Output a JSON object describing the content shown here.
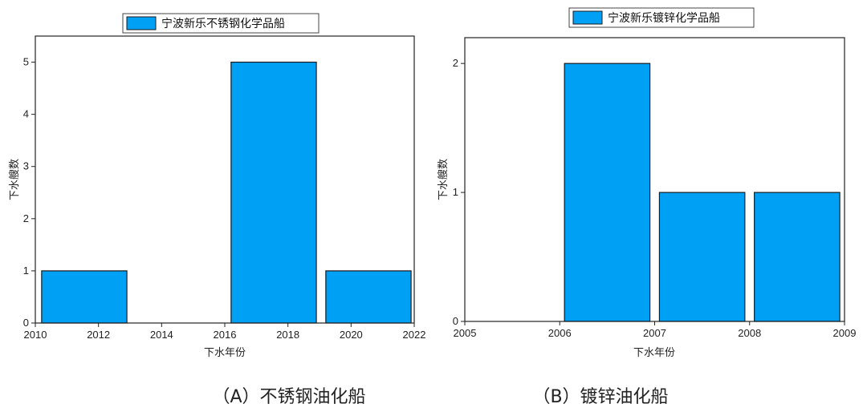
{
  "chart_data": [
    {
      "type": "bar",
      "legend": "宁波新乐不锈钢化学品船",
      "xlabel": "下水年份",
      "ylabel": "下水艘数",
      "xlim": [
        2010,
        2022
      ],
      "ylim": [
        0,
        5.5
      ],
      "xticks": [
        "2010",
        "2012",
        "2014",
        "2016",
        "2018",
        "2020",
        "2022"
      ],
      "yticks": [
        "0",
        "1",
        "2",
        "3",
        "4",
        "5"
      ],
      "bars": [
        {
          "x0": 2010.2,
          "x1": 2012.9,
          "value": 1
        },
        {
          "x0": 2016.2,
          "x1": 2018.9,
          "value": 5
        },
        {
          "x0": 2019.2,
          "x1": 2021.9,
          "value": 1
        }
      ],
      "color": "#00a0f5",
      "legend_position": "top-center",
      "caption": "（A）不锈钢油化船"
    },
    {
      "type": "bar",
      "legend": "宁波新乐镀锌化学品船",
      "xlabel": "下水年份",
      "ylabel": "下水艘数",
      "xlim": [
        2005,
        2009
      ],
      "ylim": [
        0,
        2.2
      ],
      "xticks": [
        "2005",
        "2006",
        "2007",
        "2008",
        "2009"
      ],
      "yticks": [
        "0",
        "1",
        "2"
      ],
      "bars": [
        {
          "x0": 2006.05,
          "x1": 2006.95,
          "value": 2
        },
        {
          "x0": 2007.05,
          "x1": 2007.95,
          "value": 1
        },
        {
          "x0": 2008.05,
          "x1": 2008.95,
          "value": 1
        }
      ],
      "color": "#00a0f5",
      "legend_position": "top-center",
      "caption": "（B）镀锌油化船"
    }
  ]
}
